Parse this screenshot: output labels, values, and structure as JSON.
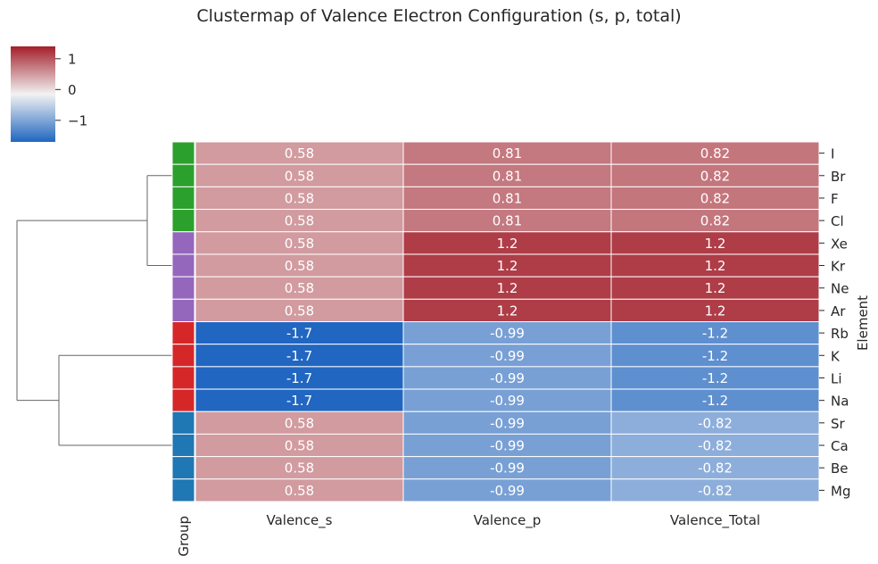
{
  "chart_data": {
    "type": "heatmap",
    "title": "Clustermap of Valence Electron Configuration (s, p, total)",
    "columns": [
      "Valence_s",
      "Valence_p",
      "Valence_Total"
    ],
    "rows": [
      "I",
      "Br",
      "F",
      "Cl",
      "Xe",
      "Kr",
      "Ne",
      "Ar",
      "Rb",
      "K",
      "Li",
      "Na",
      "Sr",
      "Ca",
      "Be",
      "Mg"
    ],
    "values": [
      [
        0.58,
        0.81,
        0.82
      ],
      [
        0.58,
        0.81,
        0.82
      ],
      [
        0.58,
        0.81,
        0.82
      ],
      [
        0.58,
        0.81,
        0.82
      ],
      [
        0.58,
        1.2,
        1.2
      ],
      [
        0.58,
        1.2,
        1.2
      ],
      [
        0.58,
        1.2,
        1.2
      ],
      [
        0.58,
        1.2,
        1.2
      ],
      [
        -1.7,
        -0.99,
        -1.2
      ],
      [
        -1.7,
        -0.99,
        -1.2
      ],
      [
        -1.7,
        -0.99,
        -1.2
      ],
      [
        -1.7,
        -0.99,
        -1.2
      ],
      [
        0.58,
        -0.99,
        -0.82
      ],
      [
        0.58,
        -0.99,
        -0.82
      ],
      [
        0.58,
        -0.99,
        -0.82
      ],
      [
        0.58,
        -0.99,
        -0.82
      ]
    ],
    "row_axis_label": "Element",
    "group_column_label": "Group",
    "group_colors": [
      "#2ca02c",
      "#2ca02c",
      "#2ca02c",
      "#2ca02c",
      "#9467bd",
      "#9467bd",
      "#9467bd",
      "#9467bd",
      "#d62728",
      "#d62728",
      "#d62728",
      "#d62728",
      "#1f77b4",
      "#1f77b4",
      "#1f77b4",
      "#1f77b4"
    ],
    "colorbar": {
      "ticks": [
        1,
        0,
        -1
      ],
      "tick_labels": [
        "1",
        "0",
        "−1"
      ],
      "range": [
        -1.7,
        1.4
      ]
    },
    "colormap": {
      "low": "#2166c0",
      "mid": "#f2f2f2",
      "high": "#a31f2b"
    },
    "annotation_colors": {
      "light_text": "#ffffff",
      "dark_text": "#262626"
    }
  }
}
